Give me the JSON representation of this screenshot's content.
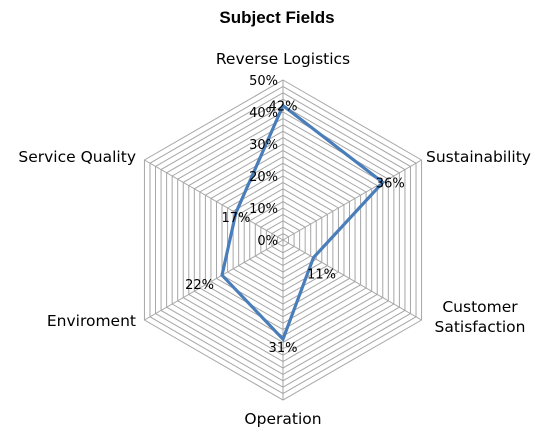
{
  "chart_data": {
    "type": "radar",
    "title": "Subject Fields",
    "categories": [
      "Reverse Logistics",
      "Sustainability",
      "Customer Satisfaction",
      "Operation",
      "Enviroment",
      "Service Quality"
    ],
    "category_lines": [
      [
        "Reverse Logistics"
      ],
      [
        "Sustainability"
      ],
      [
        "Customer",
        "Satisfaction"
      ],
      [
        "Operation"
      ],
      [
        "Enviroment"
      ],
      [
        "Service Quality"
      ]
    ],
    "series": [
      {
        "values": [
          42,
          36,
          11,
          31,
          22,
          17
        ],
        "labels": [
          "42%",
          "36%",
          "11%",
          "31%",
          "22%",
          "17%"
        ],
        "color": "#4a7ebb"
      }
    ],
    "rlim": [
      0,
      50
    ],
    "ticks": [
      "0%",
      "10%",
      "20%",
      "30%",
      "40%",
      "50%"
    ],
    "grid": true,
    "grid_color": "#a6a6a6",
    "legend": "none"
  }
}
